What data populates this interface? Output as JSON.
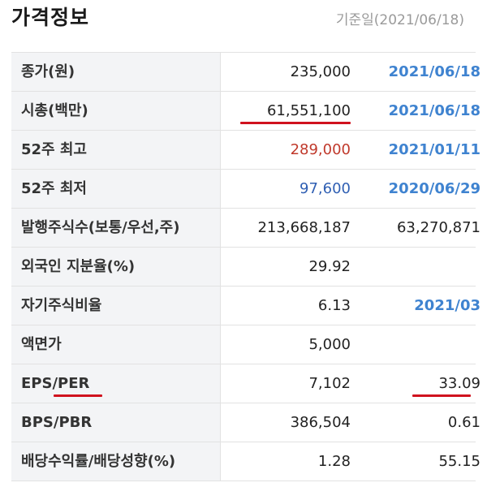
{
  "header": {
    "title": "가격정보",
    "base_date": "기준일(2021/06/18)"
  },
  "colors": {
    "accent_blue": "#3f83d0",
    "high_red": "#c0392b",
    "low_blue": "#2f5fb3",
    "underline_red": "#d0121e"
  },
  "rows": [
    {
      "label": "종가(원)",
      "value": "235,000",
      "extra": "2021/06/18"
    },
    {
      "label": "시총(백만)",
      "value": "61,551,100",
      "extra": "2021/06/18"
    },
    {
      "label": "52주 최고",
      "value": "289,000",
      "extra": "2021/01/11"
    },
    {
      "label": "52주 최저",
      "value": "97,600",
      "extra": "2020/06/29"
    },
    {
      "label": "발행주식수(보통/우선,주)",
      "value": "213,668,187",
      "extra": "63,270,871"
    },
    {
      "label": "외국인 지분율(%)",
      "value": "29.92",
      "extra": ""
    },
    {
      "label": "자기주식비율",
      "value": "6.13",
      "extra": "2021/03"
    },
    {
      "label": "액면가",
      "value": "5,000",
      "extra": ""
    },
    {
      "label": "EPS/PER",
      "value": "7,102",
      "extra": "33.09"
    },
    {
      "label": "BPS/PBR",
      "value": "386,504",
      "extra": "0.61"
    },
    {
      "label": "배당수익률/배당성향(%)",
      "value": "1.28",
      "extra": "55.15"
    }
  ]
}
